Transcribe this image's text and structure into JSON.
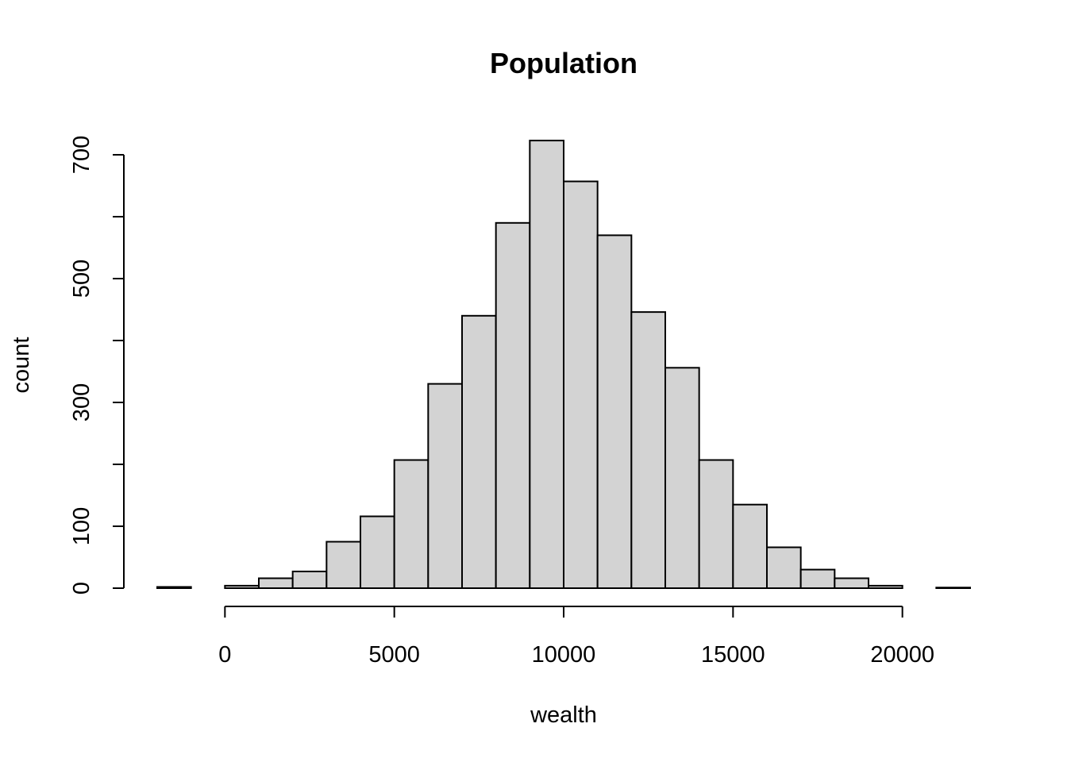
{
  "chart_data": {
    "type": "bar",
    "title": "Population",
    "xlabel": "wealth",
    "ylabel": "count",
    "bin_width": 1000,
    "bins": [
      {
        "start": -2000,
        "end": -1000,
        "count": 2
      },
      {
        "start": -1000,
        "end": 0,
        "count": 0
      },
      {
        "start": 0,
        "end": 1000,
        "count": 4
      },
      {
        "start": 1000,
        "end": 2000,
        "count": 16
      },
      {
        "start": 2000,
        "end": 3000,
        "count": 27
      },
      {
        "start": 3000,
        "end": 4000,
        "count": 75
      },
      {
        "start": 4000,
        "end": 5000,
        "count": 116
      },
      {
        "start": 5000,
        "end": 6000,
        "count": 207
      },
      {
        "start": 6000,
        "end": 7000,
        "count": 330
      },
      {
        "start": 7000,
        "end": 8000,
        "count": 440
      },
      {
        "start": 8000,
        "end": 9000,
        "count": 590
      },
      {
        "start": 9000,
        "end": 10000,
        "count": 723
      },
      {
        "start": 10000,
        "end": 11000,
        "count": 657
      },
      {
        "start": 11000,
        "end": 12000,
        "count": 570
      },
      {
        "start": 12000,
        "end": 13000,
        "count": 446
      },
      {
        "start": 13000,
        "end": 14000,
        "count": 356
      },
      {
        "start": 14000,
        "end": 15000,
        "count": 207
      },
      {
        "start": 15000,
        "end": 16000,
        "count": 135
      },
      {
        "start": 16000,
        "end": 17000,
        "count": 66
      },
      {
        "start": 17000,
        "end": 18000,
        "count": 30
      },
      {
        "start": 18000,
        "end": 19000,
        "count": 16
      },
      {
        "start": 19000,
        "end": 20000,
        "count": 4
      },
      {
        "start": 20000,
        "end": 21000,
        "count": 0
      },
      {
        "start": 21000,
        "end": 22000,
        "count": 1
      }
    ],
    "xlim": [
      -2000,
      22000
    ],
    "ylim": [
      0,
      700
    ],
    "x_ticks": [
      0,
      5000,
      10000,
      15000,
      20000
    ],
    "x_tick_labels": [
      "0",
      "5000",
      "10000",
      "15000",
      "20000"
    ],
    "y_ticks": [
      0,
      100,
      200,
      300,
      400,
      500,
      600,
      700
    ],
    "y_tick_labels": [
      "0",
      "100",
      "",
      "300",
      "",
      "500",
      "",
      "700"
    ],
    "grid": false,
    "legend": "none",
    "colors": {
      "bar_fill": "#d3d3d3",
      "bar_stroke": "#000000",
      "background": "#ffffff"
    }
  }
}
